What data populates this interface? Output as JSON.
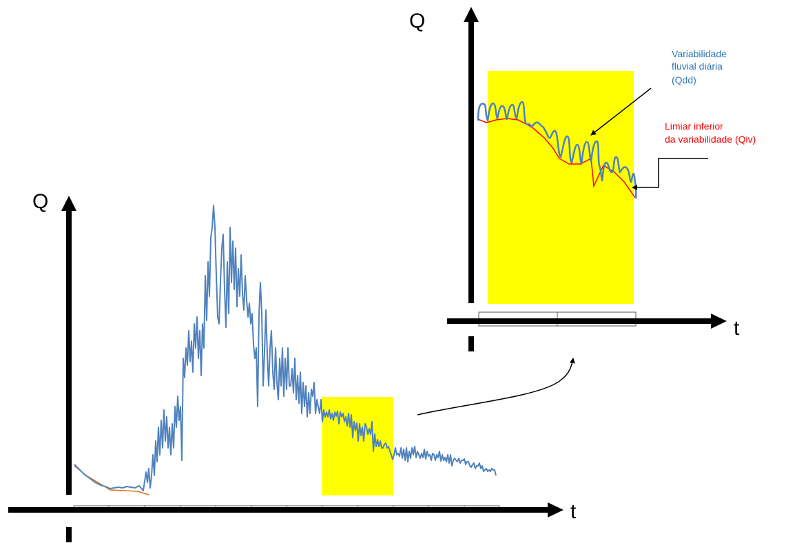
{
  "colors": {
    "highlight": "#ffff00",
    "discharge_line": "#4f81bd",
    "lower_threshold_line": "#ff0000",
    "baseline_line_main": "#e46c0a",
    "axis": "#000000",
    "annotation_blue": "#2e75b6",
    "annotation_red": "#ff0000"
  },
  "main_chart": {
    "y_axis_letter": "Q",
    "x_axis_letter": "t"
  },
  "inset_chart": {
    "y_axis_letter": "Q",
    "x_axis_letter": "t",
    "annotation_qdd": [
      "Variabilidade",
      "fluvial diária",
      "(Qdd)"
    ],
    "annotation_qiv": [
      "Limiar inferior",
      "da variabilidade (Qiv)"
    ]
  }
}
